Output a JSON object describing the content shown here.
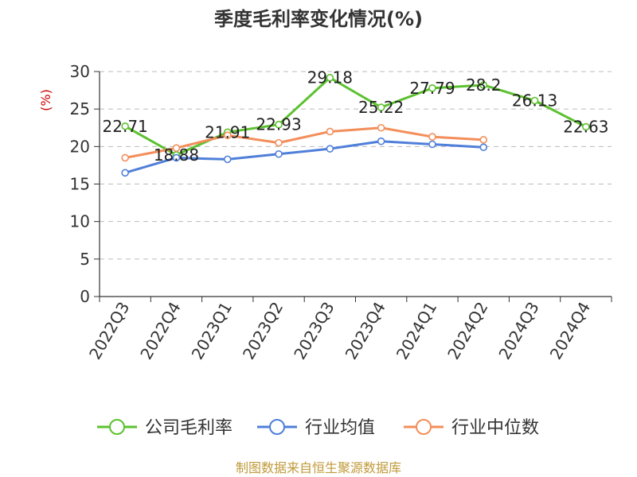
{
  "chart_data": {
    "type": "line",
    "title": "季度毛利率变化情况(%)",
    "ylabel": "(%)",
    "xlabel": "",
    "categories": [
      "2022Q3",
      "2022Q4",
      "2023Q1",
      "2023Q2",
      "2023Q3",
      "2023Q4",
      "2024Q1",
      "2024Q2",
      "2024Q3",
      "2024Q4"
    ],
    "ylim": [
      0,
      30
    ],
    "yticks": [
      0,
      5,
      10,
      15,
      20,
      25,
      30
    ],
    "grid": true,
    "legend_position": "bottom-center",
    "series": [
      {
        "name": "公司毛利率",
        "color": "#5cc12f",
        "values": [
          22.71,
          18.88,
          21.91,
          22.93,
          29.18,
          25.22,
          27.79,
          28.2,
          26.13,
          22.63
        ],
        "data_labels": [
          "22.71",
          "18.88",
          "21.91",
          "22.93",
          "29.18",
          "25.22",
          "27.79",
          "28.2",
          "26.13",
          "22.63"
        ]
      },
      {
        "name": "行业均值",
        "color": "#4f7fd9",
        "values": [
          16.5,
          18.5,
          18.3,
          19.0,
          19.7,
          20.7,
          20.3,
          19.9,
          null,
          null
        ]
      },
      {
        "name": "行业中位数",
        "color": "#f38e5a",
        "values": [
          18.5,
          19.8,
          21.5,
          20.5,
          22.0,
          22.5,
          21.3,
          20.9,
          null,
          null
        ]
      }
    ]
  },
  "footer": {
    "source": "制图数据来自恒生聚源数据库"
  },
  "colors": {
    "ylabel": "#cc0000",
    "footer": "#c09a3a",
    "axis": "#333333",
    "grid": "#bbbbbb"
  }
}
